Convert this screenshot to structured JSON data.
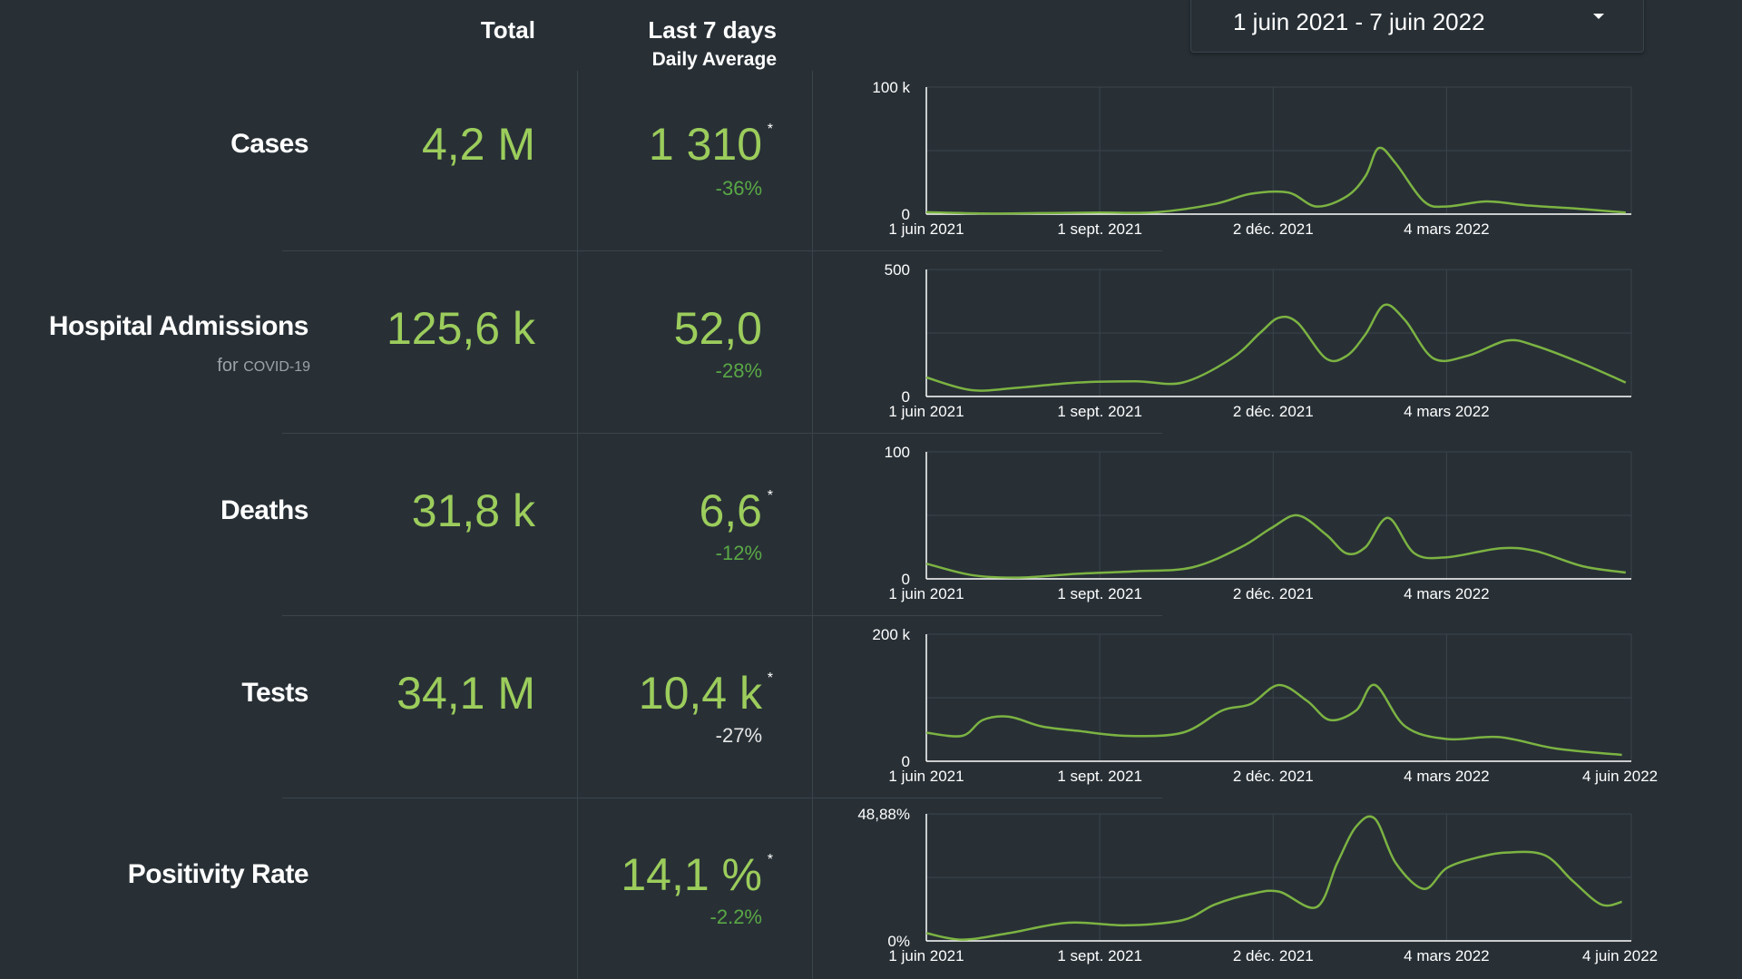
{
  "header": {
    "total": "Total",
    "last7": "Last 7 days",
    "daily_avg": "Daily Average"
  },
  "date_range": {
    "label": "1 juin 2021 - 7 juin 2022",
    "icon": "caret-down-icon"
  },
  "colors": {
    "background": "#283036",
    "value_green": "#9ccd5c",
    "change_green": "#5aa845",
    "line": "#7cb342",
    "grid": "#3a444b"
  },
  "rows": [
    {
      "label": "Cases",
      "sublabel": "",
      "total": "4,2 M",
      "avg": "1 310",
      "star": "*",
      "change": "-36%"
    },
    {
      "label": "Hospital Admissions",
      "sublabel": "for",
      "sublabel_small": "COVID-19",
      "total": "125,6 k",
      "avg": "52,0",
      "star": "",
      "change": "-28%"
    },
    {
      "label": "Deaths",
      "sublabel": "",
      "total": "31,8 k",
      "avg": "6,6",
      "star": "*",
      "change": "-12%"
    },
    {
      "label": "Tests",
      "sublabel": "",
      "total": "34,1 M",
      "avg": "10,4 k",
      "star": "*",
      "change": "-27%"
    },
    {
      "label": "Positivity Rate",
      "sublabel": "",
      "total": "",
      "avg": "14,1 %",
      "star": "*",
      "change": "-2.2%"
    }
  ],
  "chart_data": [
    {
      "type": "line",
      "series_name": "Cases",
      "ylim": [
        0,
        100000
      ],
      "ytick_labels": [
        "100 k",
        "0"
      ],
      "xtick_labels": [
        "1 juin 2021",
        "1 sept. 2021",
        "2 déc. 2021",
        "4 mars 2022"
      ],
      "grid": true,
      "x": [
        "2021-06-01",
        "2021-07-01",
        "2021-08-01",
        "2021-09-01",
        "2021-10-01",
        "2021-11-01",
        "2021-11-20",
        "2021-12-10",
        "2021-12-25",
        "2022-01-10",
        "2022-01-20",
        "2022-01-27",
        "2022-02-05",
        "2022-02-20",
        "2022-03-04",
        "2022-03-25",
        "2022-04-15",
        "2022-05-15",
        "2022-06-07"
      ],
      "y": [
        1500,
        500,
        800,
        1200,
        1500,
        8000,
        16000,
        17000,
        6000,
        14000,
        30000,
        52000,
        40000,
        10000,
        6000,
        10000,
        7000,
        4000,
        1200
      ]
    },
    {
      "type": "line",
      "series_name": "Hospital Admissions",
      "ylim": [
        0,
        500
      ],
      "ytick_labels": [
        "500",
        "0"
      ],
      "xtick_labels": [
        "1 juin 2021",
        "1 sept. 2021",
        "2 déc. 2021",
        "4 mars 2022"
      ],
      "grid": true,
      "x": [
        "2021-06-01",
        "2021-06-25",
        "2021-07-20",
        "2021-08-20",
        "2021-09-20",
        "2021-10-15",
        "2021-11-10",
        "2021-11-25",
        "2021-12-05",
        "2021-12-15",
        "2021-12-30",
        "2022-01-10",
        "2022-01-20",
        "2022-01-30",
        "2022-02-10",
        "2022-02-25",
        "2022-03-15",
        "2022-04-05",
        "2022-04-20",
        "2022-05-15",
        "2022-06-07"
      ],
      "y": [
        75,
        25,
        35,
        55,
        60,
        55,
        150,
        250,
        310,
        290,
        150,
        160,
        245,
        360,
        300,
        150,
        160,
        220,
        200,
        130,
        55
      ]
    },
    {
      "type": "line",
      "series_name": "Deaths",
      "ylim": [
        0,
        100
      ],
      "ytick_labels": [
        "100",
        "0"
      ],
      "xtick_labels": [
        "1 juin 2021",
        "1 sept. 2021",
        "2 déc. 2021",
        "4 mars 2022"
      ],
      "grid": true,
      "x": [
        "2021-06-01",
        "2021-06-25",
        "2021-07-20",
        "2021-08-20",
        "2021-09-20",
        "2021-10-20",
        "2021-11-15",
        "2021-12-01",
        "2021-12-15",
        "2021-12-30",
        "2022-01-10",
        "2022-01-20",
        "2022-02-01",
        "2022-02-15",
        "2022-03-04",
        "2022-04-01",
        "2022-04-20",
        "2022-05-15",
        "2022-06-07"
      ],
      "y": [
        12,
        3,
        1,
        4,
        6,
        9,
        25,
        40,
        50,
        35,
        20,
        25,
        48,
        20,
        17,
        24,
        22,
        10,
        5
      ]
    },
    {
      "type": "line",
      "series_name": "Tests",
      "ylim": [
        0,
        200000
      ],
      "ytick_labels": [
        "200 k",
        "0"
      ],
      "xtick_labels": [
        "1 juin 2021",
        "1 sept. 2021",
        "2 déc. 2021",
        "4 mars 2022",
        "4 juin 2022"
      ],
      "grid": true,
      "x": [
        "2021-06-01",
        "2021-06-20",
        "2021-07-01",
        "2021-07-15",
        "2021-08-01",
        "2021-08-20",
        "2021-09-15",
        "2021-10-15",
        "2021-11-05",
        "2021-11-20",
        "2021-12-05",
        "2021-12-20",
        "2022-01-01",
        "2022-01-15",
        "2022-01-25",
        "2022-02-10",
        "2022-03-04",
        "2022-04-01",
        "2022-05-01",
        "2022-06-05"
      ],
      "y": [
        45000,
        40000,
        65000,
        70000,
        55000,
        48000,
        40000,
        45000,
        80000,
        90000,
        120000,
        95000,
        65000,
        80000,
        120000,
        55000,
        35000,
        38000,
        20000,
        10000
      ]
    },
    {
      "type": "line",
      "series_name": "Positivity Rate",
      "ylim": [
        0,
        48.88
      ],
      "ytick_labels": [
        "48,88%",
        "0%"
      ],
      "xtick_labels": [
        "1 juin 2021",
        "1 sept. 2021",
        "2 déc. 2021",
        "4 mars 2022",
        "4 juin 2022"
      ],
      "grid": true,
      "x": [
        "2021-06-01",
        "2021-06-20",
        "2021-07-15",
        "2021-08-15",
        "2021-09-15",
        "2021-10-15",
        "2021-11-01",
        "2021-11-20",
        "2021-12-05",
        "2021-12-25",
        "2022-01-05",
        "2022-01-15",
        "2022-01-25",
        "2022-02-05",
        "2022-02-20",
        "2022-03-04",
        "2022-03-20",
        "2022-04-05",
        "2022-04-25",
        "2022-05-10",
        "2022-05-25",
        "2022-06-05"
      ],
      "y": [
        3,
        0.5,
        3,
        7,
        6,
        8,
        14,
        18,
        19,
        13,
        30,
        44,
        47,
        30,
        20,
        28,
        32,
        34,
        33,
        23,
        14,
        15
      ]
    }
  ]
}
